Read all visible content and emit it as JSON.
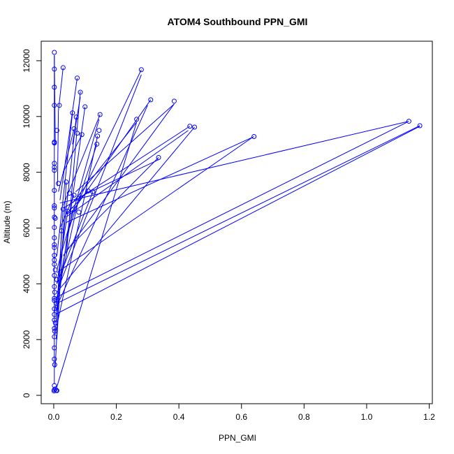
{
  "chart_data": {
    "type": "scatter",
    "title": "ATOM4 Southbound PPN_GMI",
    "xlabel": "PPN_GMI",
    "ylabel": "Altitude (m)",
    "xlim": [
      -0.04,
      1.21
    ],
    "ylim": [
      -300,
      12700
    ],
    "xticks": [
      0.0,
      0.2,
      0.4,
      0.6,
      0.8,
      1.0,
      1.2
    ],
    "xtick_labels": [
      "0.0",
      "0.2",
      "0.4",
      "0.6",
      "0.8",
      "1.0",
      "1.2"
    ],
    "yticks": [
      0,
      2000,
      4000,
      6000,
      8000,
      10000,
      12000
    ],
    "ytick_labels": [
      "0",
      "2000",
      "4000",
      "6000",
      "8000",
      "10000",
      "12000"
    ],
    "grid": false,
    "legend": "none",
    "series_color": "#0000ff",
    "lines_connect_points": true,
    "points": [
      [
        0.002,
        12300
      ],
      [
        0.002,
        11700
      ],
      [
        0.03,
        11750
      ],
      [
        0.075,
        11380
      ],
      [
        0.28,
        11680
      ],
      [
        0.002,
        11050
      ],
      [
        0.085,
        10870
      ],
      [
        0.31,
        10600
      ],
      [
        0.385,
        10550
      ],
      [
        0.002,
        10400
      ],
      [
        0.018,
        10400
      ],
      [
        0.1,
        10350
      ],
      [
        0.06,
        10130
      ],
      [
        0.148,
        10070
      ],
      [
        0.072,
        9980
      ],
      [
        0.265,
        9900
      ],
      [
        1.135,
        9830
      ],
      [
        1.17,
        9670
      ],
      [
        0.435,
        9650
      ],
      [
        0.45,
        9620
      ],
      [
        0.065,
        9560
      ],
      [
        0.01,
        9500
      ],
      [
        0.145,
        9500
      ],
      [
        0.075,
        9400
      ],
      [
        0.09,
        9350
      ],
      [
        0.14,
        9300
      ],
      [
        0.64,
        9280
      ],
      [
        0.002,
        9080
      ],
      [
        0.002,
        9050
      ],
      [
        0.138,
        9010
      ],
      [
        0.335,
        8530
      ],
      [
        0.002,
        8320
      ],
      [
        0.002,
        8180
      ],
      [
        0.002,
        8070
      ],
      [
        0.04,
        7650
      ],
      [
        0.015,
        7600
      ],
      [
        0.002,
        7350
      ],
      [
        0.11,
        7330
      ],
      [
        0.125,
        7300
      ],
      [
        0.05,
        7250
      ],
      [
        0.065,
        7180
      ],
      [
        0.08,
        7050
      ],
      [
        0.002,
        6800
      ],
      [
        0.002,
        6720
      ],
      [
        0.03,
        6680
      ],
      [
        0.06,
        6650
      ],
      [
        0.045,
        6600
      ],
      [
        0.08,
        6570
      ],
      [
        0.002,
        6390
      ],
      [
        0.005,
        6350
      ],
      [
        0.002,
        6020
      ],
      [
        0.025,
        5900
      ],
      [
        0.002,
        5650
      ],
      [
        0.002,
        5400
      ],
      [
        0.002,
        5300
      ],
      [
        0.002,
        5020
      ],
      [
        0.002,
        4850
      ],
      [
        0.002,
        4700
      ],
      [
        0.005,
        4500
      ],
      [
        0.002,
        4300
      ],
      [
        0.01,
        4150
      ],
      [
        0.002,
        3900
      ],
      [
        0.003,
        3700
      ],
      [
        0.002,
        3480
      ],
      [
        0.002,
        3400
      ],
      [
        0.008,
        3300
      ],
      [
        0.002,
        3100
      ],
      [
        0.002,
        2900
      ],
      [
        0.002,
        2700
      ],
      [
        0.005,
        2600
      ],
      [
        0.002,
        2400
      ],
      [
        0.003,
        2300
      ],
      [
        0.002,
        2100
      ],
      [
        0.002,
        1700
      ],
      [
        0.002,
        1300
      ],
      [
        0.003,
        1100
      ],
      [
        0.002,
        350
      ],
      [
        0.005,
        230
      ],
      [
        0.002,
        200
      ],
      [
        0.008,
        180
      ],
      [
        0.01,
        170
      ],
      [
        0.001,
        160
      ]
    ],
    "line_segments": [
      [
        [
          0.002,
          12200
        ],
        [
          0.002,
          400
        ]
      ],
      [
        [
          0.002,
          12200
        ],
        [
          0.005,
          9000
        ]
      ],
      [
        [
          0.03,
          11750
        ],
        [
          0.015,
          10200
        ]
      ],
      [
        [
          0.015,
          10200
        ],
        [
          0.012,
          7500
        ]
      ],
      [
        [
          0.075,
          11380
        ],
        [
          0.02,
          7000
        ]
      ],
      [
        [
          0.085,
          10900
        ],
        [
          0.04,
          5000
        ]
      ],
      [
        [
          0.085,
          10700
        ],
        [
          0.06,
          9000
        ]
      ],
      [
        [
          0.28,
          11680
        ],
        [
          0.08,
          7000
        ]
      ],
      [
        [
          0.28,
          11500
        ],
        [
          0.02,
          4000
        ]
      ],
      [
        [
          0.31,
          10600
        ],
        [
          0.06,
          6600
        ]
      ],
      [
        [
          0.3,
          10400
        ],
        [
          0.01,
          3200
        ]
      ],
      [
        [
          0.385,
          10450
        ],
        [
          0.07,
          7300
        ]
      ],
      [
        [
          0.385,
          10450
        ],
        [
          0.03,
          5000
        ]
      ],
      [
        [
          0.265,
          9800
        ],
        [
          0.01,
          300
        ]
      ],
      [
        [
          0.265,
          9800
        ],
        [
          0.06,
          6900
        ]
      ],
      [
        [
          0.148,
          10070
        ],
        [
          0.03,
          6800
        ]
      ],
      [
        [
          0.145,
          9900
        ],
        [
          0.01,
          4500
        ]
      ],
      [
        [
          0.1,
          10350
        ],
        [
          0.01,
          3000
        ]
      ],
      [
        [
          0.06,
          10130
        ],
        [
          0.01,
          5000
        ]
      ],
      [
        [
          0.072,
          9980
        ],
        [
          0.02,
          4600
        ]
      ],
      [
        [
          0.435,
          9650
        ],
        [
          0.03,
          6700
        ]
      ],
      [
        [
          0.45,
          9620
        ],
        [
          0.01,
          3700
        ]
      ],
      [
        [
          0.43,
          9500
        ],
        [
          0.04,
          6400
        ]
      ],
      [
        [
          0.64,
          9280
        ],
        [
          0.04,
          6200
        ]
      ],
      [
        [
          0.635,
          9250
        ],
        [
          0.01,
          4400
        ]
      ],
      [
        [
          1.135,
          9830
        ],
        [
          0.02,
          6900
        ]
      ],
      [
        [
          1.13,
          9800
        ],
        [
          0.005,
          3500
        ]
      ],
      [
        [
          1.17,
          9670
        ],
        [
          0.01,
          3300
        ]
      ],
      [
        [
          1.17,
          9650
        ],
        [
          0.005,
          2900
        ]
      ],
      [
        [
          0.335,
          8530
        ],
        [
          0.04,
          5200
        ]
      ],
      [
        [
          0.335,
          8450
        ],
        [
          0.08,
          7100
        ]
      ],
      [
        [
          0.14,
          9300
        ],
        [
          0.01,
          2500
        ]
      ],
      [
        [
          0.138,
          9010
        ],
        [
          0.05,
          6000
        ]
      ],
      [
        [
          0.125,
          7300
        ],
        [
          0.01,
          4000
        ]
      ],
      [
        [
          0.11,
          7330
        ],
        [
          0.04,
          6500
        ]
      ],
      [
        [
          0.04,
          7650
        ],
        [
          0.01,
          2000
        ]
      ],
      [
        [
          0.065,
          9560
        ],
        [
          0.015,
          7300
        ]
      ],
      [
        [
          0.09,
          9350
        ],
        [
          0.03,
          8000
        ]
      ],
      [
        [
          0.08,
          7050
        ],
        [
          0.01,
          3500
        ]
      ],
      [
        [
          0.065,
          7180
        ],
        [
          0.02,
          6000
        ]
      ],
      [
        [
          0.045,
          6600
        ],
        [
          0.01,
          4000
        ]
      ],
      [
        [
          0.03,
          6680
        ],
        [
          0.005,
          2200
        ]
      ],
      [
        [
          0.025,
          5900
        ],
        [
          0.005,
          1000
        ]
      ],
      [
        [
          0.06,
          6650
        ],
        [
          0.003,
          3000
        ]
      ]
    ]
  }
}
